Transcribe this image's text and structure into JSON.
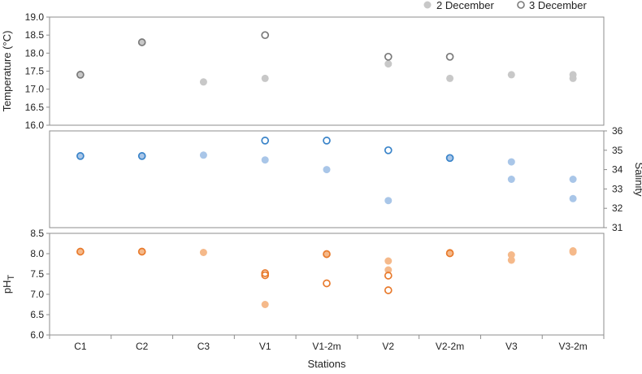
{
  "chart_data": {
    "type": "scatter",
    "categories": [
      "C1",
      "C2",
      "C3",
      "V1",
      "V1-2m",
      "V2",
      "V2-2m",
      "V3",
      "V3-2m"
    ],
    "xlabel": "Stations",
    "legend": {
      "placement": "top-right",
      "entries": [
        {
          "label": "2 December",
          "marker": "filled"
        },
        {
          "label": "3 December",
          "marker": "open"
        }
      ]
    },
    "panels": [
      {
        "id": "temperature",
        "ylabel": "Temperature (°C)",
        "yaxis_side": "left",
        "ylim": [
          16.0,
          19.0
        ],
        "yticks": [
          "16.0",
          "16.5",
          "17.0",
          "17.5",
          "18.0",
          "18.5",
          "19.0"
        ],
        "color_filled": "#c8c8c8",
        "color_open": "#7a7a7a",
        "series": [
          {
            "name": "2 December",
            "marker": "filled",
            "points": [
              {
                "x": "C1",
                "y": 17.4
              },
              {
                "x": "C2",
                "y": 18.3
              },
              {
                "x": "C3",
                "y": 17.2
              },
              {
                "x": "V1",
                "y": 17.3
              },
              {
                "x": "V2",
                "y": 17.7
              },
              {
                "x": "V2-2m",
                "y": 17.3
              },
              {
                "x": "V3",
                "y": 17.4
              },
              {
                "x": "V3-2m",
                "y": 17.4
              },
              {
                "x": "V3-2m",
                "y": 17.3
              }
            ]
          },
          {
            "name": "3 December",
            "marker": "open",
            "points": [
              {
                "x": "C1",
                "y": 17.4
              },
              {
                "x": "C2",
                "y": 18.3
              },
              {
                "x": "V1",
                "y": 18.5
              },
              {
                "x": "V2",
                "y": 17.9
              },
              {
                "x": "V2-2m",
                "y": 17.9
              }
            ]
          }
        ]
      },
      {
        "id": "salinity",
        "ylabel": "Salinity",
        "yaxis_side": "right",
        "ylim": [
          31,
          36
        ],
        "yticks": [
          "31",
          "32",
          "33",
          "34",
          "35",
          "36"
        ],
        "color_filled": "#a9c6e8",
        "color_open": "#3a84c9",
        "series": [
          {
            "name": "2 December",
            "marker": "filled",
            "points": [
              {
                "x": "C1",
                "y": 34.7
              },
              {
                "x": "C2",
                "y": 34.7
              },
              {
                "x": "C3",
                "y": 34.75
              },
              {
                "x": "V1",
                "y": 34.5
              },
              {
                "x": "V1-2m",
                "y": 34.0
              },
              {
                "x": "V2",
                "y": 32.4
              },
              {
                "x": "V2-2m",
                "y": 34.6
              },
              {
                "x": "V3",
                "y": 34.4
              },
              {
                "x": "V3",
                "y": 33.5
              },
              {
                "x": "V3-2m",
                "y": 33.5
              },
              {
                "x": "V3-2m",
                "y": 32.5
              }
            ]
          },
          {
            "name": "3 December",
            "marker": "open",
            "points": [
              {
                "x": "C1",
                "y": 34.7
              },
              {
                "x": "C2",
                "y": 34.7
              },
              {
                "x": "V1",
                "y": 35.5
              },
              {
                "x": "V1-2m",
                "y": 35.5
              },
              {
                "x": "V2",
                "y": 35.0
              },
              {
                "x": "V2-2m",
                "y": 34.6
              }
            ]
          }
        ]
      },
      {
        "id": "ph",
        "ylabel": "pH",
        "ylabel_subscript": "T",
        "yaxis_side": "left",
        "ylim": [
          6.0,
          8.5
        ],
        "yticks": [
          "6.0",
          "6.5",
          "7.0",
          "7.5",
          "8.0",
          "8.5"
        ],
        "color_filled": "#f5b98a",
        "color_open": "#e87a2c",
        "series": [
          {
            "name": "2 December",
            "marker": "filled",
            "points": [
              {
                "x": "C1",
                "y": 8.05
              },
              {
                "x": "C2",
                "y": 8.05
              },
              {
                "x": "C3",
                "y": 8.03
              },
              {
                "x": "V1",
                "y": 6.75
              },
              {
                "x": "V1-2m",
                "y": 7.98
              },
              {
                "x": "V2",
                "y": 7.82
              },
              {
                "x": "V2",
                "y": 7.6
              },
              {
                "x": "V2-2m",
                "y": 8.03
              },
              {
                "x": "V3",
                "y": 7.97
              },
              {
                "x": "V3",
                "y": 7.84
              },
              {
                "x": "V3-2m",
                "y": 8.07
              },
              {
                "x": "V3-2m",
                "y": 8.04
              }
            ]
          },
          {
            "name": "3 December",
            "marker": "open",
            "points": [
              {
                "x": "C1",
                "y": 8.05
              },
              {
                "x": "C2",
                "y": 8.05
              },
              {
                "x": "V1",
                "y": 7.52
              },
              {
                "x": "V1",
                "y": 7.47
              },
              {
                "x": "V1-2m",
                "y": 7.99
              },
              {
                "x": "V1-2m",
                "y": 7.27
              },
              {
                "x": "V2",
                "y": 7.46
              },
              {
                "x": "V2",
                "y": 7.1
              },
              {
                "x": "V2-2m",
                "y": 8.01
              }
            ]
          }
        ]
      }
    ]
  }
}
